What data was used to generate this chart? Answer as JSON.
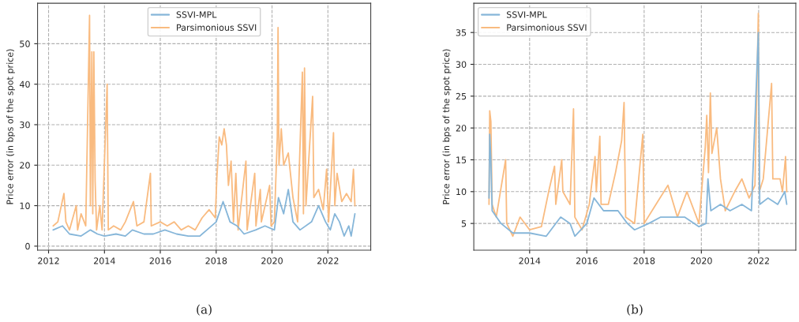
{
  "chart_data": [
    {
      "type": "line",
      "title": "(a)",
      "ylabel": "Price error (in bps of the spot price)",
      "xlim": [
        "2011-08-10",
        "2023-07-15"
      ],
      "ylim": [
        -1,
        60
      ],
      "xticks": [
        {
          "value": "2012",
          "label": "2012"
        },
        {
          "value": "2014",
          "label": "2014"
        },
        {
          "value": "2016",
          "label": "2016"
        },
        {
          "value": "2018",
          "label": "2018"
        },
        {
          "value": "2020",
          "label": "2020"
        },
        {
          "value": "2022",
          "label": "2022"
        }
      ],
      "yticks": [
        0,
        10,
        20,
        30,
        40,
        50
      ],
      "grid": true,
      "legend": "top",
      "series": [
        {
          "name": "SSVI-MPL",
          "color": "#86b6d9",
          "x": [
            "2012-03-01",
            "2012-07-01",
            "2012-10-01",
            "2013-03-01",
            "2013-07-01",
            "2013-10-01",
            "2014-01-01",
            "2014-06-01",
            "2014-10-01",
            "2015-01-01",
            "2015-06-01",
            "2015-10-01",
            "2016-03-01",
            "2016-08-01",
            "2017-01-01",
            "2017-06-01",
            "2017-09-01",
            "2018-01-01",
            "2018-04-01",
            "2018-07-01",
            "2018-10-01",
            "2019-01-01",
            "2019-06-01",
            "2019-10-01",
            "2020-02-01",
            "2020-03-25",
            "2020-06-01",
            "2020-08-01",
            "2020-10-01",
            "2021-01-01",
            "2021-06-01",
            "2021-09-01",
            "2021-12-01",
            "2022-02-01",
            "2022-04-01",
            "2022-06-01",
            "2022-08-01",
            "2022-10-01",
            "2022-11-01",
            "2022-12-20"
          ],
          "values": [
            4,
            5,
            3,
            2.5,
            4,
            3,
            2.5,
            3,
            2.5,
            4,
            3,
            3,
            4,
            3,
            2.5,
            2.5,
            4,
            6,
            11,
            6,
            5,
            3,
            4,
            5,
            4,
            12,
            8,
            14,
            6,
            4,
            6,
            10,
            6,
            4,
            8,
            6,
            2.5,
            5,
            2.5,
            8
          ]
        },
        {
          "name": "Parsimonious SSVI",
          "color": "#f9bb80",
          "x": [
            "2012-03-01",
            "2012-05-01",
            "2012-07-20",
            "2012-08-15",
            "2012-10-01",
            "2012-12-28",
            "2013-01-15",
            "2013-03-01",
            "2013-05-01",
            "2013-06-20",
            "2013-07-01",
            "2013-07-20",
            "2013-08-01",
            "2013-08-15",
            "2013-09-01",
            "2013-09-20",
            "2013-11-01",
            "2013-12-01",
            "2014-02-05",
            "2014-02-20",
            "2014-05-01",
            "2014-08-01",
            "2014-10-01",
            "2015-01-15",
            "2015-03-01",
            "2015-06-01",
            "2015-08-25",
            "2015-09-05",
            "2016-01-01",
            "2016-04-01",
            "2016-07-01",
            "2016-10-01",
            "2017-01-01",
            "2017-04-01",
            "2017-07-01",
            "2017-10-01",
            "2017-12-20",
            "2018-01-10",
            "2018-02-10",
            "2018-03-15",
            "2018-04-15",
            "2018-05-15",
            "2018-06-10",
            "2018-07-15",
            "2018-08-15",
            "2018-09-15",
            "2018-10-15",
            "2019-01-25",
            "2019-02-10",
            "2019-05-20",
            "2019-06-05",
            "2019-08-01",
            "2019-08-15",
            "2019-12-01",
            "2019-12-20",
            "2020-02-01",
            "2020-03-10",
            "2020-03-20",
            "2020-04-01",
            "2020-05-01",
            "2020-06-01",
            "2020-08-01",
            "2020-10-01",
            "2020-12-01",
            "2021-02-01",
            "2021-02-15",
            "2021-03-01",
            "2021-03-20",
            "2021-06-15",
            "2021-07-01",
            "2021-09-01",
            "2021-11-01",
            "2021-12-15",
            "2022-01-10",
            "2022-03-15",
            "2022-04-01",
            "2022-05-01",
            "2022-07-01",
            "2022-09-01",
            "2022-11-01",
            "2022-12-01",
            "2022-12-20"
          ],
          "values": [
            5,
            6,
            13,
            6,
            4,
            10,
            4,
            8,
            5,
            57,
            10,
            48,
            8,
            48,
            16,
            4,
            10,
            4,
            40,
            4,
            5,
            4,
            6,
            11,
            5,
            6,
            18,
            5,
            6,
            5,
            6,
            4,
            5,
            4,
            7,
            9,
            7,
            17,
            27,
            25,
            29,
            25,
            15,
            21,
            6,
            18,
            4,
            21,
            4,
            18,
            5,
            14,
            6,
            15,
            5,
            6,
            27,
            54,
            20,
            29,
            20,
            23,
            12,
            6,
            43,
            8,
            44,
            10,
            37,
            12,
            14,
            9,
            19,
            6,
            28,
            10,
            18,
            11,
            13,
            11,
            19,
            10
          ]
        }
      ]
    },
    {
      "type": "line",
      "title": "(b)",
      "ylabel": "Price error (in bps of the spot price)",
      "xlim": [
        "2012-01-20",
        "2023-04-20"
      ],
      "ylim": [
        0.8,
        39.6
      ],
      "xticks": [
        {
          "value": "2014",
          "label": "2014"
        },
        {
          "value": "2016",
          "label": "2016"
        },
        {
          "value": "2018",
          "label": "2018"
        },
        {
          "value": "2020",
          "label": "2020"
        },
        {
          "value": "2022",
          "label": "2022"
        }
      ],
      "yticks": [
        5,
        10,
        15,
        20,
        25,
        30,
        35
      ],
      "grid": true,
      "legend": "top left",
      "series": [
        {
          "name": "SSVI-MPL",
          "color": "#86b6d9",
          "x": [
            "2012-08-01",
            "2012-08-10",
            "2012-08-25",
            "2012-09-10",
            "2013-01-01",
            "2013-06-01",
            "2014-01-01",
            "2014-08-01",
            "2015-02-01",
            "2015-06-01",
            "2015-08-01",
            "2016-01-01",
            "2016-04-01",
            "2016-08-01",
            "2017-02-01",
            "2017-06-01",
            "2017-09-01",
            "2018-03-01",
            "2018-08-01",
            "2018-12-01",
            "2019-06-01",
            "2019-12-01",
            "2020-03-01",
            "2020-03-25",
            "2020-05-01",
            "2020-09-01",
            "2021-01-01",
            "2021-06-01",
            "2021-10-01",
            "2021-12-28",
            "2022-01-15",
            "2022-05-01",
            "2022-09-01",
            "2022-12-01",
            "2022-12-25"
          ],
          "values": [
            9,
            19,
            15,
            7,
            5,
            3.5,
            3.5,
            3,
            6,
            5,
            3,
            5,
            9,
            7,
            7,
            5,
            4,
            5,
            6,
            6,
            6,
            4.5,
            5,
            12,
            7,
            8,
            7,
            8,
            7,
            35,
            8,
            9,
            8,
            10,
            8
          ]
        },
        {
          "name": "Parsimonious SSVI",
          "color": "#f9bb80",
          "x": [
            "2012-08-01",
            "2012-08-10",
            "2012-08-25",
            "2012-09-10",
            "2012-11-01",
            "2013-03-01",
            "2013-03-15",
            "2013-06-01",
            "2013-09-01",
            "2014-01-01",
            "2014-06-01",
            "2014-09-01",
            "2014-11-15",
            "2014-12-01",
            "2015-02-15",
            "2015-03-01",
            "2015-06-01",
            "2015-07-15",
            "2015-08-01",
            "2015-11-01",
            "2016-02-01",
            "2016-04-15",
            "2016-05-01",
            "2016-06-15",
            "2016-07-01",
            "2016-10-01",
            "2017-01-01",
            "2017-03-20",
            "2017-04-20",
            "2017-05-10",
            "2017-09-01",
            "2017-12-15",
            "2018-01-01",
            "2018-06-01",
            "2018-11-01",
            "2019-03-01",
            "2019-07-01",
            "2019-12-01",
            "2020-02-20",
            "2020-03-10",
            "2020-04-01",
            "2020-04-25",
            "2020-05-15",
            "2020-07-15",
            "2020-09-01",
            "2020-11-01",
            "2021-03-01",
            "2021-06-01",
            "2021-09-01",
            "2021-11-15",
            "2021-12-28",
            "2022-01-10",
            "2022-03-01",
            "2022-06-15",
            "2022-07-01",
            "2022-10-01",
            "2022-11-01",
            "2022-12-10",
            "2022-12-25"
          ],
          "values": [
            8,
            22.7,
            21,
            8,
            6,
            15,
            5,
            3,
            6,
            4,
            4.5,
            10,
            14,
            8,
            15,
            10,
            8,
            23,
            6,
            4,
            8,
            15.5,
            10,
            18.7,
            8,
            8,
            13,
            18,
            24,
            6,
            5,
            19,
            5,
            8,
            11,
            6,
            10,
            5,
            17,
            22,
            13,
            25.5,
            16,
            20,
            12,
            7,
            10,
            12,
            9,
            11,
            38,
            10,
            12,
            27,
            12,
            12,
            10,
            15.5,
            10
          ]
        }
      ]
    }
  ]
}
